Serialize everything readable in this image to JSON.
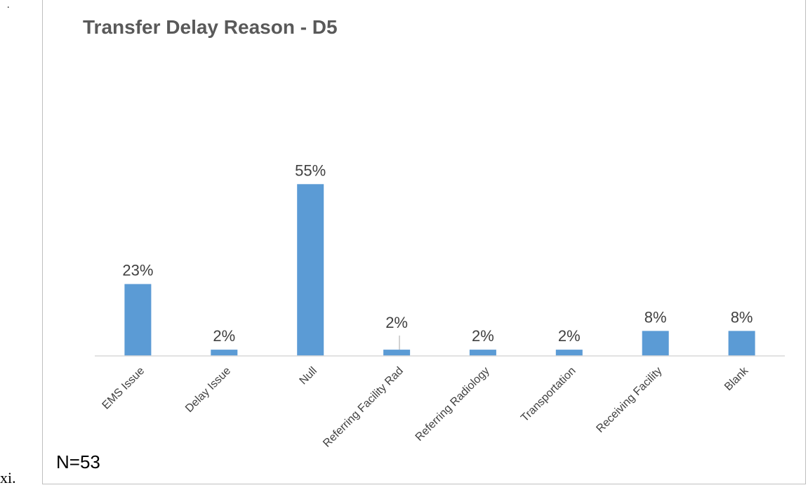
{
  "page": {
    "list_marker": "xi.",
    "top_mark": "."
  },
  "chart_data": {
    "type": "bar",
    "title": "Transfer Delay Reason - D5",
    "categories": [
      "EMS Issue",
      "Delay Issue",
      "Null",
      "Referring Facility Rad",
      "Referring Radiology",
      "Transportation",
      "Receiving Facility",
      "Blank"
    ],
    "values": [
      23,
      2,
      55,
      2,
      2,
      2,
      8,
      8
    ],
    "data_labels": [
      "23%",
      "2%",
      "55%",
      "2%",
      "2%",
      "2%",
      "8%",
      "8%"
    ],
    "ylim": [
      0,
      60
    ],
    "grid": false,
    "legend": "none",
    "annotation": "N=53",
    "bar_color": "#5b9bd5",
    "title_color": "#595959",
    "label_color": "#404040",
    "axis_color": "#d9d9d9"
  }
}
